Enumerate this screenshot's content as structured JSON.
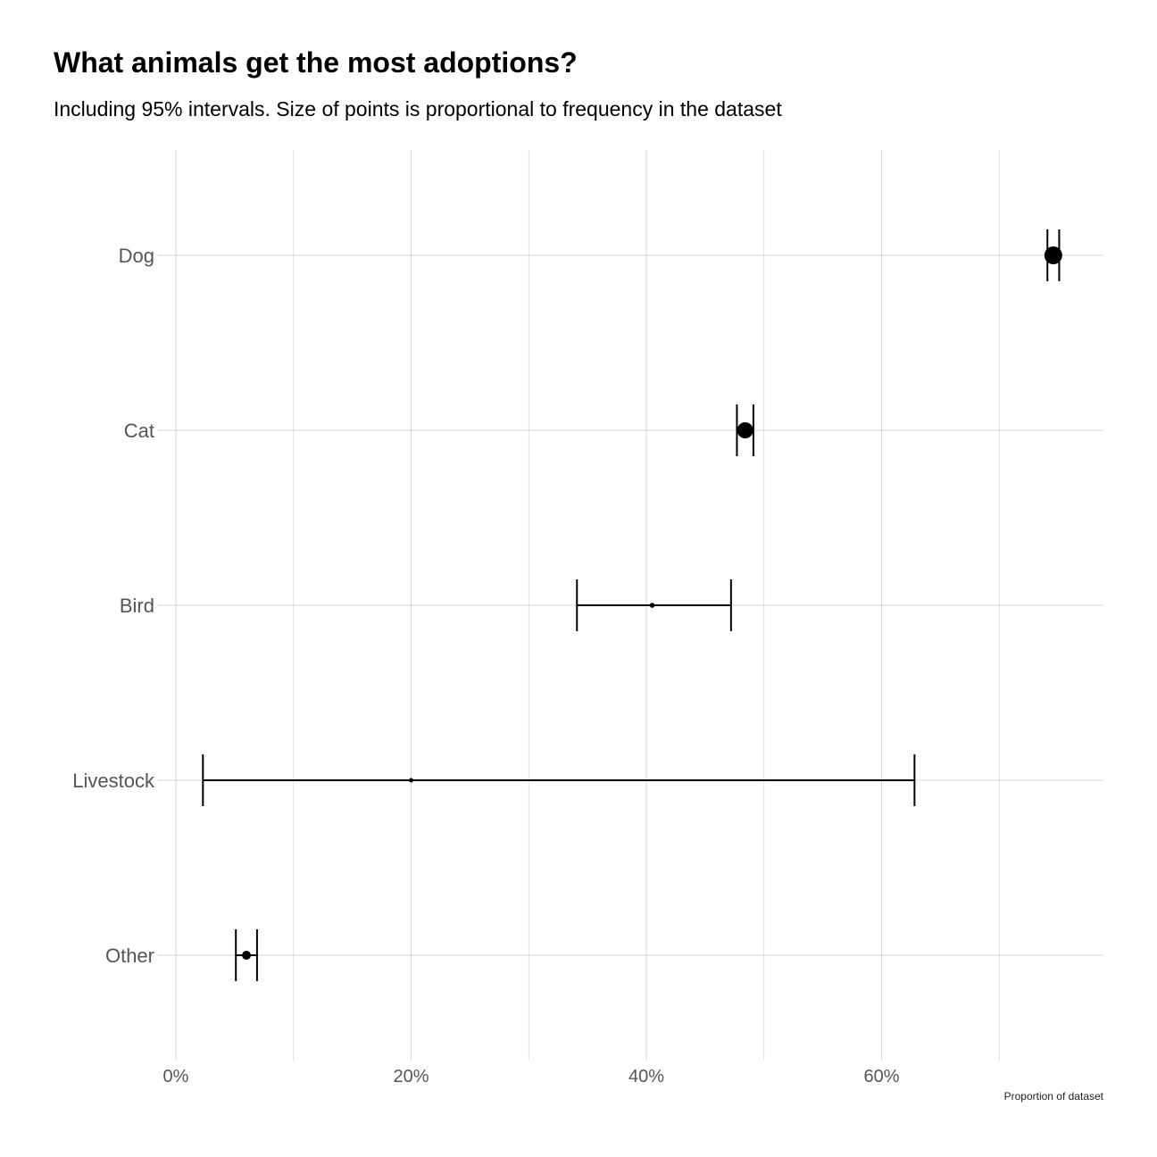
{
  "chart_data": {
    "type": "scatter",
    "title": "What animals get the most adoptions?",
    "subtitle": "Including 95% intervals. Size of points is proportional to frequency in the dataset",
    "xlabel": "Proportion of dataset",
    "ylabel": "",
    "xlim": [
      -0.1,
      0.79
    ],
    "x_ticks": [
      0,
      0.2,
      0.4,
      0.6
    ],
    "x_tick_labels": [
      "0%",
      "20%",
      "40%",
      "60%"
    ],
    "x_minor_gridlines": [
      0.1,
      0.3,
      0.5,
      0.7
    ],
    "grid": true,
    "legend": "none",
    "categories": [
      "Dog",
      "Cat",
      "Bird",
      "Livestock",
      "Other"
    ],
    "points": [
      {
        "category": "Dog",
        "estimate": 0.746,
        "lower": 0.741,
        "upper": 0.751,
        "relative_size": 1.0
      },
      {
        "category": "Cat",
        "estimate": 0.484,
        "lower": 0.477,
        "upper": 0.491,
        "relative_size": 0.9
      },
      {
        "category": "Bird",
        "estimate": 0.405,
        "lower": 0.341,
        "upper": 0.472,
        "relative_size": 0.28
      },
      {
        "category": "Livestock",
        "estimate": 0.2,
        "lower": 0.023,
        "upper": 0.628,
        "relative_size": 0.2
      },
      {
        "category": "Other",
        "estimate": 0.06,
        "lower": 0.051,
        "upper": 0.069,
        "relative_size": 0.5
      }
    ],
    "colors": {
      "point": "#000000",
      "errorbar": "#000000",
      "grid": "#d9d9d9",
      "tick_label": "#555555"
    }
  }
}
